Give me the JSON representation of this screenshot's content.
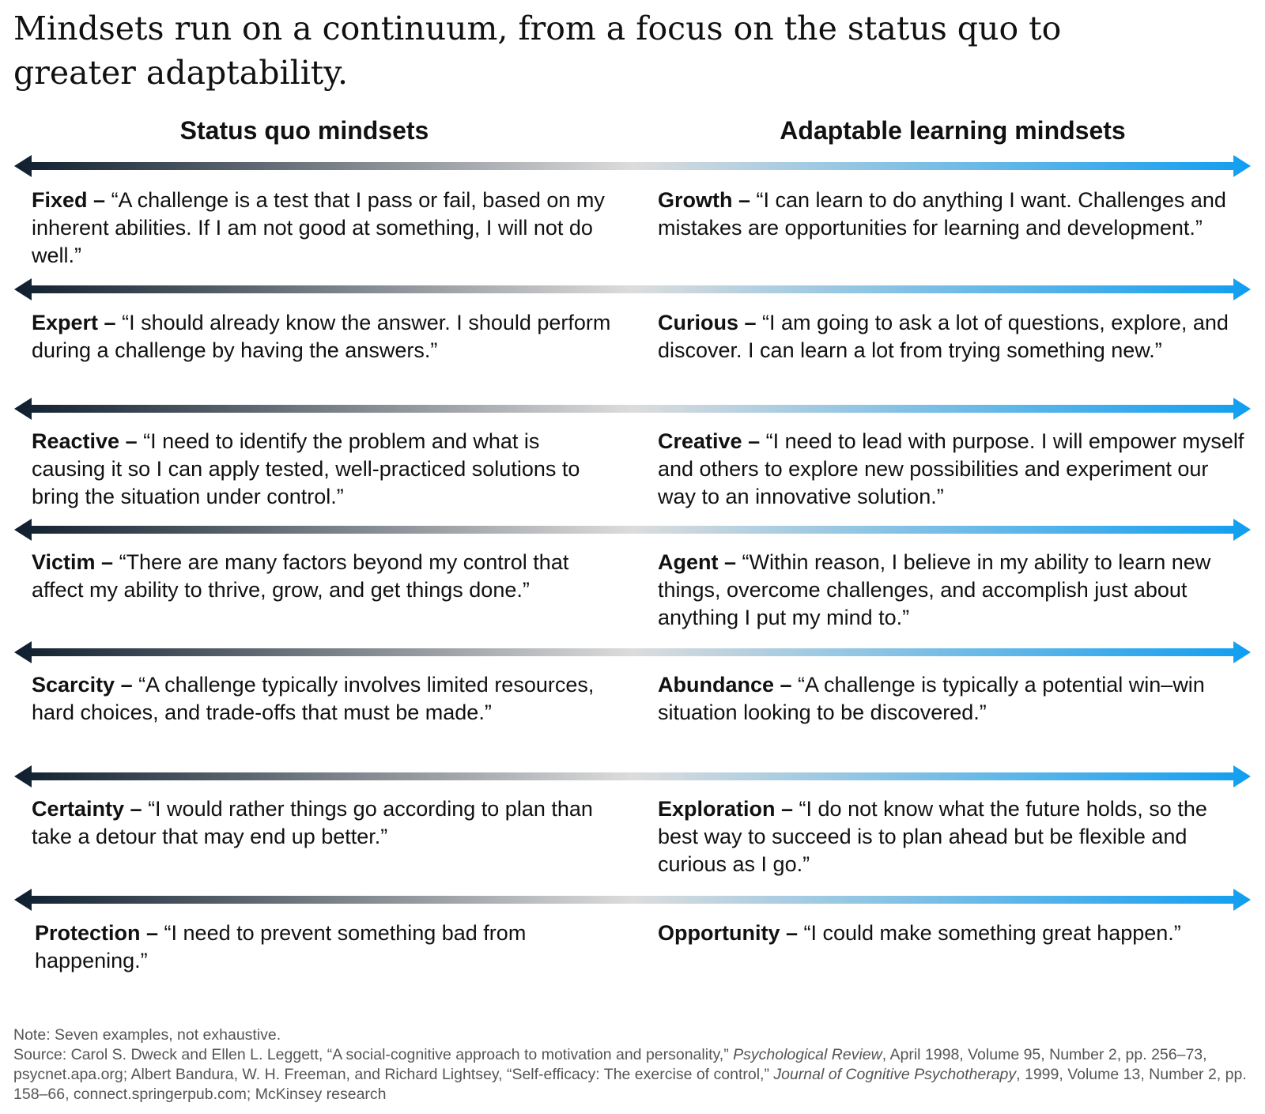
{
  "title": "Mindsets run on a continuum, from a focus on the status quo to greater adaptability.",
  "columns": {
    "left": "Status quo mindsets",
    "right": "Adaptable learning mindsets"
  },
  "colors": {
    "arrow_left": "#0f1e2e",
    "arrow_mid": "#dcdcdc",
    "arrow_right": "#109ef0"
  },
  "rows": [
    {
      "left": {
        "term": "Fixed",
        "sep": " – ",
        "quote": "“A challenge is a test that I pass or fail, based on my inherent abilities. If I am not good at something, I will not do well.”"
      },
      "right": {
        "term": "Growth",
        "sep": " – ",
        "quote": "“I can learn to do anything I want. Challenges and mistakes are opportunities for learning and development.”"
      }
    },
    {
      "left": {
        "term": "Expert",
        "sep": " – ",
        "quote": "“I should already know the answer. I should perform during a challenge by having the answers.”"
      },
      "right": {
        "term": "Curious",
        "sep": " – ",
        "quote": "“I am going to ask a lot of questions, explore, and discover. I can learn a lot from trying something new.”"
      }
    },
    {
      "left": {
        "term": "Reactive",
        "sep": " – ",
        "quote": "“I need to identify the problem and what is causing it so I can apply tested, well-practiced solutions to bring the situation under control.”"
      },
      "right": {
        "term": "Creative",
        "sep": " – ",
        "quote": "“I need to lead with purpose. I will empower myself and others to explore new possibilities and experiment our way to an innovative solution.”"
      }
    },
    {
      "left": {
        "term": "Victim",
        "sep": " – ",
        "quote": "“There are many factors beyond my control that affect my ability to thrive, grow, and get things done.”"
      },
      "right": {
        "term": "Agent",
        "sep": " – ",
        "quote": "“Within reason, I believe in my ability to learn new things, overcome challenges, and accomplish just about anything I put my mind to.”"
      }
    },
    {
      "left": {
        "term": "Scarcity",
        "sep": " – ",
        "quote": "“A challenge typically involves limited resources, hard choices, and trade-offs that must be made.”"
      },
      "right": {
        "term": "Abundance",
        "sep": " – ",
        "quote": "“A challenge is typically a potential win–win situation looking to be discovered.”"
      }
    },
    {
      "left": {
        "term": "Certainty",
        "sep": " – ",
        "quote": "“I would rather things go according to plan than take a detour that may end up better.”"
      },
      "right": {
        "term": "Exploration",
        "sep": " – ",
        "quote": "“I do not know what the future holds, so the best way to succeed is to plan ahead but be flexible and curious as I go.”"
      }
    },
    {
      "left": {
        "term": "Protection",
        "sep": " – ",
        "quote": "“I need to prevent something bad from happening.”"
      },
      "right": {
        "term": "Opportunity",
        "sep": " – ",
        "quote": "“I could make something great happen.”"
      }
    }
  ],
  "footer": {
    "note": "Note: Seven examples, not exhaustive.",
    "source_1": "Source: Carol S. Dweck and Ellen L. Leggett, “A social-cognitive approach to motivation and personality,” ",
    "journal_1": "Psychological Review",
    "source_2": ", April 1998, Volume 95, Number 2, pp. 256–73, psycnet.apa.org; Albert Bandura, W. H. Freeman, and Richard Lightsey, “Self-efficacy: The exercise of control,” ",
    "journal_2": "Journal of Cognitive Psychotherapy",
    "source_3": ", 1999, Volume 13, Number 2, pp. 158–66, connect.springerpub.com; McKinsey research"
  }
}
